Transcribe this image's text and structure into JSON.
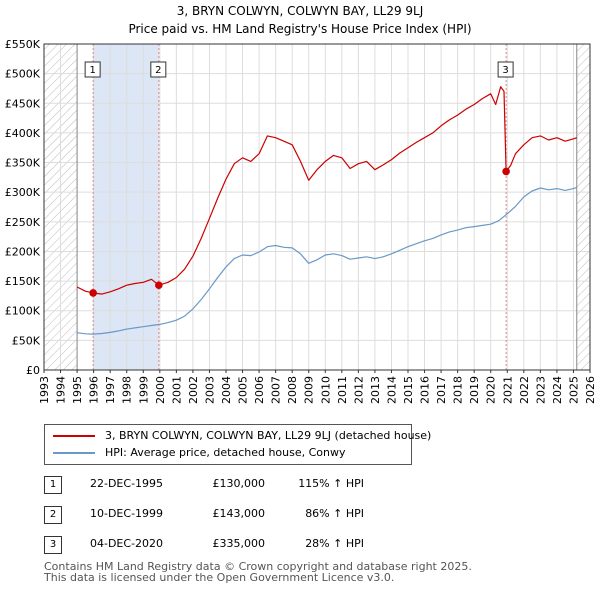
{
  "title": "3, BRYN COLWYN, COLWYN BAY, LL29 9LJ",
  "subtitle": "Price paid vs. HM Land Registry's House Price Index (HPI)",
  "colors": {
    "property": "#cc0000",
    "hpi": "#6a98c8",
    "shade": "#dce6f5",
    "grid": "#dddddd",
    "hatch": "#bbbbbb",
    "sale_line": "#e08a8a"
  },
  "chart_data": {
    "type": "line",
    "xlim": [
      1993,
      2026
    ],
    "ylim": [
      0,
      550000
    ],
    "x_ticks": [
      "1993",
      "1994",
      "1995",
      "1996",
      "1997",
      "1998",
      "1999",
      "2000",
      "2001",
      "2002",
      "2003",
      "2004",
      "2005",
      "2006",
      "2007",
      "2008",
      "2009",
      "2010",
      "2011",
      "2012",
      "2013",
      "2014",
      "2015",
      "2016",
      "2017",
      "2018",
      "2019",
      "2020",
      "2021",
      "2022",
      "2023",
      "2024",
      "2025",
      "2026"
    ],
    "y_ticks": [
      {
        "value": 0,
        "label": "£0"
      },
      {
        "value": 50000,
        "label": "£50K"
      },
      {
        "value": 100000,
        "label": "£100K"
      },
      {
        "value": 150000,
        "label": "£150K"
      },
      {
        "value": 200000,
        "label": "£200K"
      },
      {
        "value": 250000,
        "label": "£250K"
      },
      {
        "value": 300000,
        "label": "£300K"
      },
      {
        "value": 350000,
        "label": "£350K"
      },
      {
        "value": 400000,
        "label": "£400K"
      },
      {
        "value": 450000,
        "label": "£450K"
      },
      {
        "value": 500000,
        "label": "£500K"
      },
      {
        "value": 550000,
        "label": "£550K"
      }
    ],
    "hatched_ranges": [
      [
        1993,
        1995.0
      ],
      [
        2025.2,
        2026
      ]
    ],
    "shaded_ranges": [
      [
        1995.97,
        1999.94
      ]
    ],
    "series": [
      {
        "name": "3, BRYN COLWYN, COLWYN BAY, LL29 9LJ (detached house)",
        "x": [
          1995.0,
          1995.5,
          1995.97,
          1996.5,
          1997,
          1997.5,
          1998,
          1998.5,
          1999,
          1999.5,
          1999.94,
          2000.5,
          2001,
          2001.5,
          2002,
          2002.5,
          2003,
          2003.5,
          2004,
          2004.5,
          2005,
          2005.5,
          2006,
          2006.5,
          2007,
          2007.5,
          2008,
          2008.5,
          2009,
          2009.5,
          2010,
          2010.5,
          2011,
          2011.5,
          2012,
          2012.5,
          2013,
          2013.5,
          2014,
          2014.5,
          2015,
          2015.5,
          2016,
          2016.5,
          2017,
          2017.5,
          2018,
          2018.5,
          2019,
          2019.5,
          2020,
          2020.3,
          2020.6,
          2020.8,
          2020.93,
          2021.2,
          2021.5,
          2022,
          2022.5,
          2023,
          2023.5,
          2024,
          2024.5,
          2025,
          2025.2
        ],
        "values": [
          140000,
          133000,
          130000,
          128000,
          132000,
          137000,
          143000,
          146000,
          148000,
          153000,
          143000,
          148000,
          156000,
          170000,
          192000,
          222000,
          256000,
          290000,
          322000,
          348000,
          358000,
          352000,
          365000,
          395000,
          392000,
          386000,
          380000,
          352000,
          320000,
          338000,
          352000,
          362000,
          358000,
          340000,
          348000,
          352000,
          338000,
          346000,
          355000,
          366000,
          375000,
          384000,
          392000,
          400000,
          412000,
          422000,
          430000,
          440000,
          448000,
          458000,
          466000,
          448000,
          478000,
          470000,
          335000,
          345000,
          365000,
          380000,
          392000,
          395000,
          388000,
          392000,
          386000,
          390000,
          392000
        ]
      },
      {
        "name": "HPI: Average price, detached house, Conwy",
        "x": [
          1995.0,
          1995.5,
          1996,
          1996.5,
          1997,
          1997.5,
          1998,
          1998.5,
          1999,
          1999.5,
          2000,
          2000.5,
          2001,
          2001.5,
          2002,
          2002.5,
          2003,
          2003.5,
          2004,
          2004.5,
          2005,
          2005.5,
          2006,
          2006.5,
          2007,
          2007.5,
          2008,
          2008.5,
          2009,
          2009.5,
          2010,
          2010.5,
          2011,
          2011.5,
          2012,
          2012.5,
          2013,
          2013.5,
          2014,
          2014.5,
          2015,
          2015.5,
          2016,
          2016.5,
          2017,
          2017.5,
          2018,
          2018.5,
          2019,
          2019.5,
          2020,
          2020.5,
          2020.93,
          2021.5,
          2022,
          2022.5,
          2023,
          2023.5,
          2024,
          2024.5,
          2025,
          2025.2
        ],
        "values": [
          63000,
          61000,
          60500,
          61500,
          63500,
          66000,
          69000,
          71000,
          73000,
          75000,
          77000,
          80000,
          84000,
          91000,
          103000,
          119000,
          137000,
          156000,
          174000,
          188000,
          194000,
          193000,
          199000,
          208000,
          210000,
          207000,
          206000,
          196000,
          180000,
          186000,
          194000,
          196000,
          193000,
          187000,
          189000,
          191000,
          188000,
          191000,
          196000,
          202000,
          208000,
          213000,
          218000,
          222000,
          228000,
          233000,
          236000,
          240000,
          242000,
          244000,
          246000,
          252000,
          262000,
          276000,
          292000,
          302000,
          307000,
          304000,
          306000,
          303000,
          306000,
          308000
        ]
      }
    ],
    "sales": [
      {
        "label": "1",
        "x": 1995.97,
        "value": 130000
      },
      {
        "label": "2",
        "x": 1999.94,
        "value": 143000
      },
      {
        "label": "3",
        "x": 2020.93,
        "value": 335000
      }
    ]
  },
  "legend": {
    "property": "3, BRYN COLWYN, COLWYN BAY, LL29 9LJ (detached house)",
    "hpi": "HPI: Average price, detached house, Conwy"
  },
  "transactions": [
    {
      "num": "1",
      "date": "22-DEC-1995",
      "price": "£130,000",
      "hpi": "115% ↑ HPI"
    },
    {
      "num": "2",
      "date": "10-DEC-1999",
      "price": "£143,000",
      "hpi": "86% ↑ HPI"
    },
    {
      "num": "3",
      "date": "04-DEC-2020",
      "price": "£335,000",
      "hpi": "28% ↑ HPI"
    }
  ],
  "footer": "Contains HM Land Registry data © Crown copyright and database right 2025.\nThis data is licensed under the Open Government Licence v3.0."
}
